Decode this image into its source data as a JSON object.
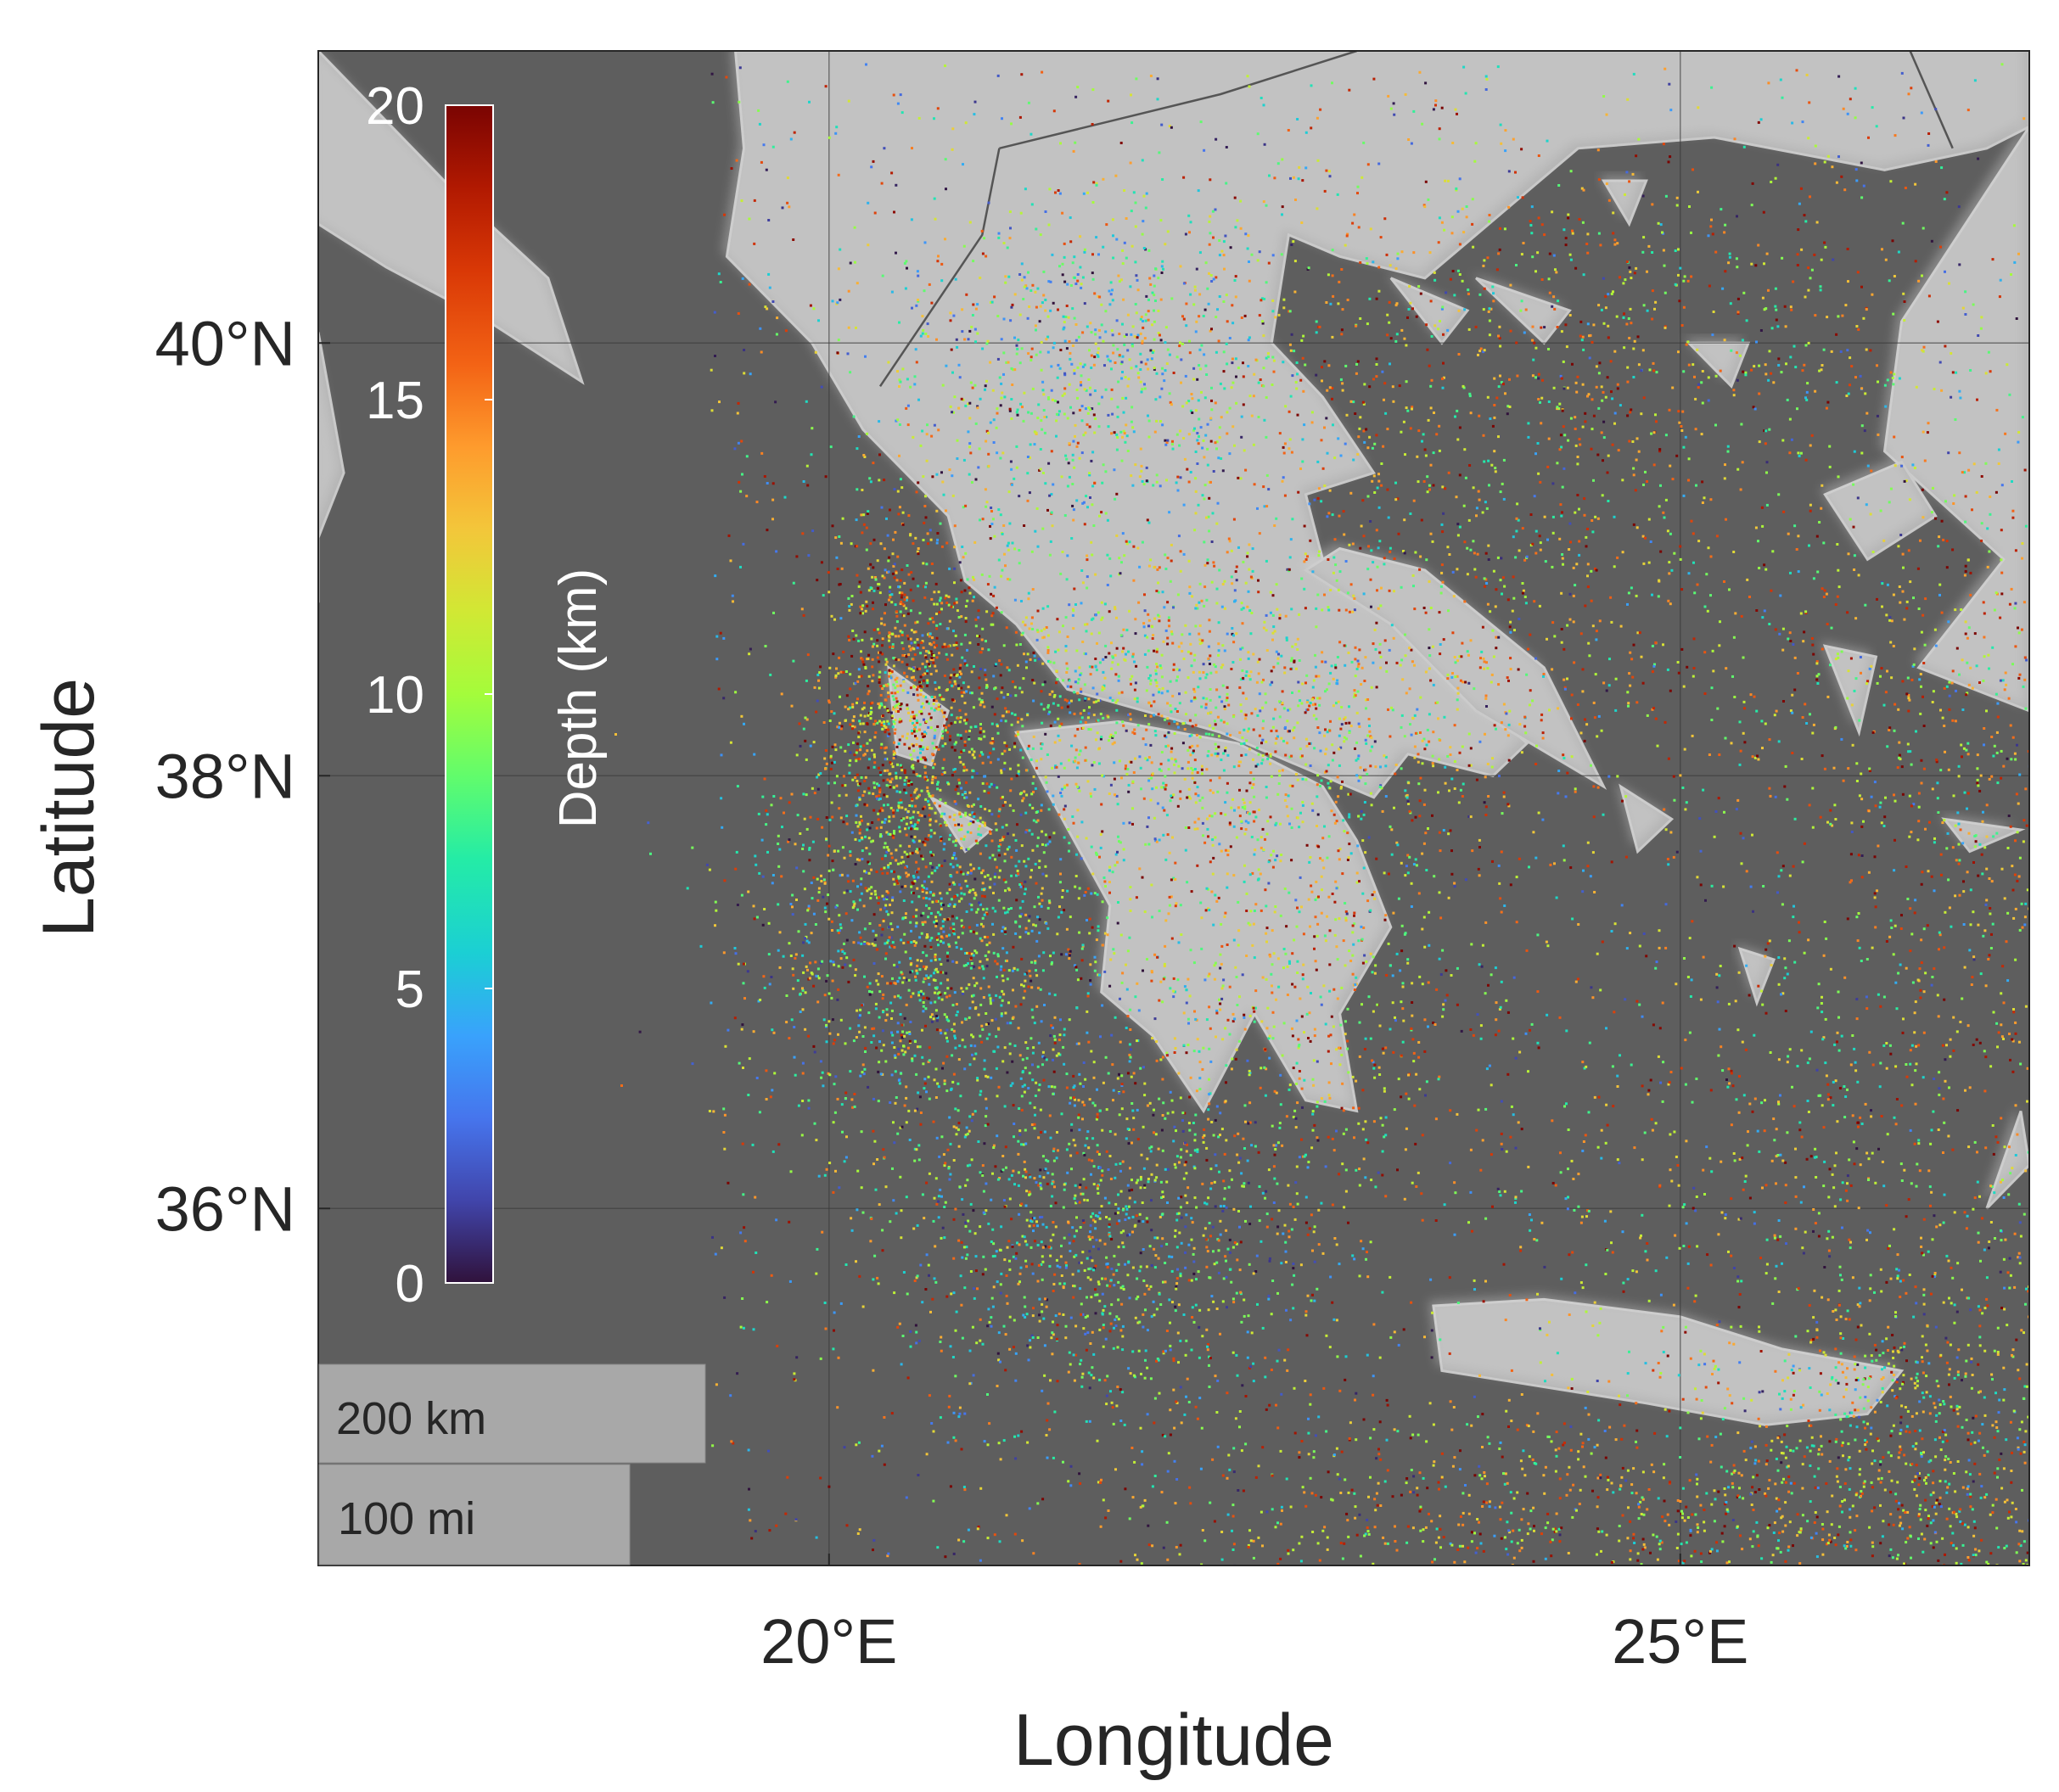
{
  "map": {
    "x_axis": {
      "label": "Longitude",
      "ticks": [
        {
          "value": 20,
          "label": "20°E"
        },
        {
          "value": 25,
          "label": "25°E"
        }
      ],
      "range": [
        17,
        27.05
      ]
    },
    "y_axis": {
      "label": "Latitude",
      "ticks": [
        {
          "value": 40,
          "label": "40°N"
        },
        {
          "value": 38,
          "label": "38°N"
        },
        {
          "value": 36,
          "label": "36°N"
        }
      ],
      "range": [
        34.35,
        41.35
      ]
    },
    "grid": true,
    "basemap": "grey shaded relief",
    "colorbar": {
      "label": "Depth (km)",
      "colormap": "turbo",
      "range": [
        0,
        20
      ],
      "ticks": [
        {
          "value": 20,
          "label": "20"
        },
        {
          "value": 15,
          "label": "15"
        },
        {
          "value": 10,
          "label": "10"
        },
        {
          "value": 5,
          "label": "5"
        },
        {
          "value": 0,
          "label": "0"
        }
      ],
      "placement": "top-left, inside"
    },
    "scalebar": {
      "metric_label": "200 km",
      "imperial_label": "100 mi",
      "placement": "bottom-left"
    },
    "colors": {
      "sea": "#5e5e5e",
      "land": "#b4b4b4",
      "land_highlight": "#dcdcdc",
      "scalebar_bg": "#a8a8a8",
      "axis": "#262626"
    },
    "seismicity_clusters": [
      {
        "lon": 20.6,
        "lat": 37.25,
        "spread": [
          0.55,
          0.45
        ],
        "depth_mean": 9,
        "density": 1.0
      },
      {
        "lon": 20.45,
        "lat": 38.3,
        "spread": [
          0.25,
          0.45
        ],
        "depth_mean": 14,
        "density": 0.8
      },
      {
        "lon": 21.6,
        "lat": 35.9,
        "spread": [
          0.6,
          0.5
        ],
        "depth_mean": 9,
        "density": 0.85
      },
      {
        "lon": 21.9,
        "lat": 38.3,
        "spread": [
          0.8,
          0.35
        ],
        "depth_mean": 10,
        "density": 0.9
      },
      {
        "lon": 21.5,
        "lat": 39.9,
        "spread": [
          0.6,
          0.4
        ],
        "depth_mean": 8,
        "density": 0.6
      },
      {
        "lon": 23.8,
        "lat": 38.8,
        "spread": [
          1.2,
          0.6
        ],
        "depth_mean": 13,
        "density": 0.6
      },
      {
        "lon": 24.5,
        "lat": 34.5,
        "spread": [
          1.6,
          0.35
        ],
        "depth_mean": 13,
        "density": 0.8
      },
      {
        "lon": 26.7,
        "lat": 38.0,
        "spread": [
          0.6,
          0.9
        ],
        "depth_mean": 13,
        "density": 0.55
      },
      {
        "lon": 26.4,
        "lat": 35.0,
        "spread": [
          0.6,
          0.5
        ],
        "depth_mean": 11,
        "density": 0.6
      },
      {
        "lon": 24.2,
        "lat": 40.1,
        "spread": [
          1.2,
          0.4
        ],
        "depth_mean": 13,
        "density": 0.45
      },
      {
        "lon": 22.8,
        "lat": 37.2,
        "spread": [
          0.5,
          0.6
        ],
        "depth_mean": 12,
        "density": 0.45
      },
      {
        "lon": 25.5,
        "lat": 36.5,
        "spread": [
          1.3,
          0.5
        ],
        "depth_mean": 12,
        "density": 0.35
      }
    ],
    "land_polygons": [
      {
        "name": "italy-heel",
        "points": [
          [
            17.0,
            40.55
          ],
          [
            17.4,
            40.35
          ],
          [
            18.0,
            40.1
          ],
          [
            18.55,
            39.82
          ],
          [
            18.35,
            40.3
          ],
          [
            17.8,
            40.7
          ],
          [
            17.0,
            41.35
          ]
        ]
      },
      {
        "name": "calabria",
        "points": [
          [
            17.0,
            40.05
          ],
          [
            17.15,
            39.4
          ],
          [
            17.0,
            39.1
          ],
          [
            17.0,
            38.8
          ]
        ]
      },
      {
        "name": "balkans-greece-mainland",
        "points": [
          [
            19.45,
            41.35
          ],
          [
            19.5,
            40.9
          ],
          [
            19.4,
            40.4
          ],
          [
            19.9,
            40.0
          ],
          [
            20.2,
            39.6
          ],
          [
            20.7,
            39.2
          ],
          [
            20.8,
            38.9
          ],
          [
            21.1,
            38.7
          ],
          [
            21.4,
            38.4
          ],
          [
            22.3,
            38.2
          ],
          [
            22.9,
            38.0
          ],
          [
            23.2,
            37.9
          ],
          [
            23.4,
            38.1
          ],
          [
            23.9,
            38.0
          ],
          [
            24.1,
            38.15
          ],
          [
            23.6,
            38.5
          ],
          [
            23.3,
            38.7
          ],
          [
            22.9,
            39.0
          ],
          [
            22.8,
            39.3
          ],
          [
            23.2,
            39.4
          ],
          [
            22.9,
            39.75
          ],
          [
            22.6,
            40.0
          ],
          [
            22.7,
            40.5
          ],
          [
            23.0,
            40.4
          ],
          [
            23.5,
            40.3
          ],
          [
            23.8,
            40.5
          ],
          [
            24.4,
            40.9
          ],
          [
            25.2,
            40.95
          ],
          [
            26.2,
            40.8
          ],
          [
            26.8,
            40.9
          ],
          [
            27.05,
            41.0
          ],
          [
            27.05,
            41.35
          ]
        ]
      },
      {
        "name": "peloponnese",
        "points": [
          [
            21.1,
            38.2
          ],
          [
            21.3,
            37.9
          ],
          [
            21.65,
            37.4
          ],
          [
            21.6,
            37.0
          ],
          [
            21.9,
            36.8
          ],
          [
            22.2,
            36.45
          ],
          [
            22.5,
            36.9
          ],
          [
            22.8,
            36.5
          ],
          [
            23.1,
            36.45
          ],
          [
            23.0,
            36.9
          ],
          [
            23.3,
            37.3
          ],
          [
            23.1,
            37.7
          ],
          [
            22.9,
            37.95
          ],
          [
            22.4,
            38.15
          ],
          [
            21.7,
            38.25
          ]
        ]
      },
      {
        "name": "euboea",
        "points": [
          [
            22.8,
            38.95
          ],
          [
            23.3,
            38.7
          ],
          [
            23.8,
            38.3
          ],
          [
            24.55,
            37.95
          ],
          [
            24.2,
            38.5
          ],
          [
            23.5,
            38.95
          ],
          [
            23.0,
            39.05
          ]
        ]
      },
      {
        "name": "chalkidiki-1",
        "points": [
          [
            23.3,
            40.3
          ],
          [
            23.6,
            40.0
          ],
          [
            23.75,
            40.15
          ]
        ]
      },
      {
        "name": "chalkidiki-2",
        "points": [
          [
            23.8,
            40.3
          ],
          [
            24.2,
            40.0
          ],
          [
            24.35,
            40.15
          ]
        ]
      },
      {
        "name": "turkey",
        "points": [
          [
            27.05,
            41.0
          ],
          [
            26.3,
            40.1
          ],
          [
            26.2,
            39.5
          ],
          [
            26.9,
            39.0
          ],
          [
            26.4,
            38.5
          ],
          [
            27.05,
            38.3
          ]
        ]
      },
      {
        "name": "crete",
        "points": [
          [
            23.55,
            35.55
          ],
          [
            24.2,
            35.58
          ],
          [
            25.0,
            35.5
          ],
          [
            25.6,
            35.35
          ],
          [
            26.3,
            35.25
          ],
          [
            26.1,
            35.05
          ],
          [
            25.5,
            35.0
          ],
          [
            24.8,
            35.1
          ],
          [
            24.0,
            35.2
          ],
          [
            23.6,
            35.25
          ]
        ]
      },
      {
        "name": "lesvos",
        "points": [
          [
            25.85,
            39.3
          ],
          [
            26.3,
            39.45
          ],
          [
            26.5,
            39.2
          ],
          [
            26.1,
            39.0
          ]
        ]
      },
      {
        "name": "chios",
        "points": [
          [
            25.85,
            38.6
          ],
          [
            26.15,
            38.55
          ],
          [
            26.05,
            38.2
          ]
        ]
      },
      {
        "name": "samos",
        "points": [
          [
            26.55,
            37.8
          ],
          [
            27.0,
            37.75
          ],
          [
            26.7,
            37.65
          ]
        ]
      },
      {
        "name": "kefalonia",
        "points": [
          [
            20.35,
            38.5
          ],
          [
            20.7,
            38.3
          ],
          [
            20.6,
            38.05
          ],
          [
            20.4,
            38.1
          ]
        ]
      },
      {
        "name": "zakynthos",
        "points": [
          [
            20.6,
            37.9
          ],
          [
            20.95,
            37.75
          ],
          [
            20.8,
            37.65
          ]
        ]
      },
      {
        "name": "naxos",
        "points": [
          [
            25.35,
            37.2
          ],
          [
            25.55,
            37.15
          ],
          [
            25.45,
            36.95
          ]
        ]
      },
      {
        "name": "andros",
        "points": [
          [
            24.65,
            37.95
          ],
          [
            24.95,
            37.8
          ],
          [
            24.75,
            37.65
          ]
        ]
      },
      {
        "name": "rhodes",
        "points": [
          [
            27.0,
            36.45
          ],
          [
            27.05,
            36.2
          ],
          [
            26.8,
            36.0
          ]
        ]
      },
      {
        "name": "thasos",
        "points": [
          [
            24.55,
            40.75
          ],
          [
            24.8,
            40.75
          ],
          [
            24.7,
            40.55
          ]
        ]
      },
      {
        "name": "limnos",
        "points": [
          [
            25.05,
            40.0
          ],
          [
            25.4,
            40.0
          ],
          [
            25.3,
            39.8
          ]
        ]
      }
    ],
    "border_lines": [
      {
        "name": "albania-greece",
        "points": [
          [
            20.3,
            39.8
          ],
          [
            20.9,
            40.5
          ],
          [
            21.0,
            40.9
          ]
        ]
      },
      {
        "name": "greece-north",
        "points": [
          [
            21.0,
            40.9
          ],
          [
            22.3,
            41.15
          ],
          [
            23.1,
            41.35
          ]
        ]
      },
      {
        "name": "greece-turkey",
        "points": [
          [
            26.35,
            41.35
          ],
          [
            26.6,
            40.9
          ]
        ]
      }
    ]
  }
}
